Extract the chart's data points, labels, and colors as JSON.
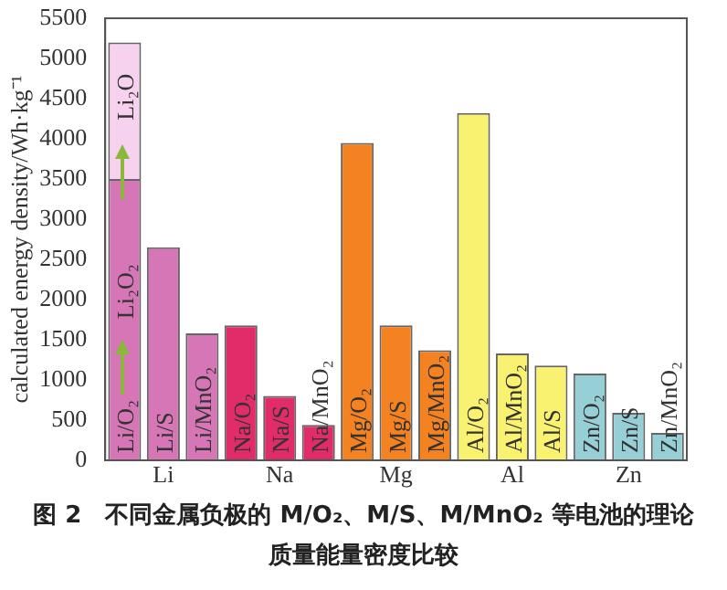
{
  "chart_data": {
    "type": "bar",
    "stacked": true,
    "title": "图 2　不同金属负极的 M/O₂、M/S、M/MnO₂ 等电池的理论质量能量密度比较",
    "ylabel": "calculated energy density/Wh·kg⁻¹",
    "categories": [
      "Li/O₂",
      "Li/S",
      "Li/MnO₂",
      "Na/O₂",
      "Na/S",
      "Na/MnO₂",
      "Mg/O₂",
      "Mg/S",
      "Mg/MnO₂",
      "Al/O₂",
      "Al/MnO₂",
      "Al/S",
      "Zn/O₂",
      "Zn/S",
      "Zn/MnO₂"
    ],
    "series": [
      {
        "colors": [
          "#d676b6",
          "#d676b6",
          "#d676b6",
          "#e02c68",
          "#e02c68",
          "#e02c68",
          "#f58220",
          "#f58220",
          "#f58220",
          "#f8f270",
          "#f8f270",
          "#f8f270",
          "#96d0d6",
          "#96d0d6",
          "#96d0d6"
        ],
        "values": [
          3500,
          2650,
          1580,
          1680,
          800,
          440,
          3950,
          1680,
          1370,
          4320,
          1330,
          1180,
          1080,
          590,
          340
        ]
      },
      {
        "color": "#f6d2ee",
        "values": [
          1700,
          null,
          null,
          null,
          null,
          null,
          null,
          null,
          null,
          null,
          null,
          null,
          null,
          null,
          null
        ]
      }
    ],
    "ylim": [
      0,
      5500
    ],
    "yticks": [
      0,
      500,
      1000,
      1500,
      2000,
      2500,
      3000,
      3500,
      4000,
      4500,
      5000,
      5500
    ],
    "annotations": [
      "Li₂O₂",
      "Li₂O",
      "Li",
      "Na",
      "Mg",
      "Al",
      "Zn"
    ]
  }
}
